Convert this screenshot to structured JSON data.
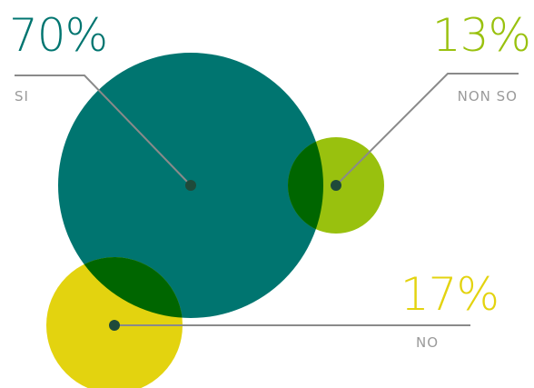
{
  "chart_data": {
    "type": "bubble",
    "series": [
      {
        "label": "SI",
        "percent_text": "70%",
        "value": 70,
        "color": "#007570"
      },
      {
        "label": "NON SO",
        "percent_text": "13%",
        "value": 13,
        "color": "#99c10e"
      },
      {
        "label": "NO",
        "percent_text": "17%",
        "value": 17,
        "color": "#e3d30f"
      }
    ],
    "overlap_color": "#006600",
    "dot_color": "#1f4a3a",
    "leader_color": "#8a8a8a"
  }
}
